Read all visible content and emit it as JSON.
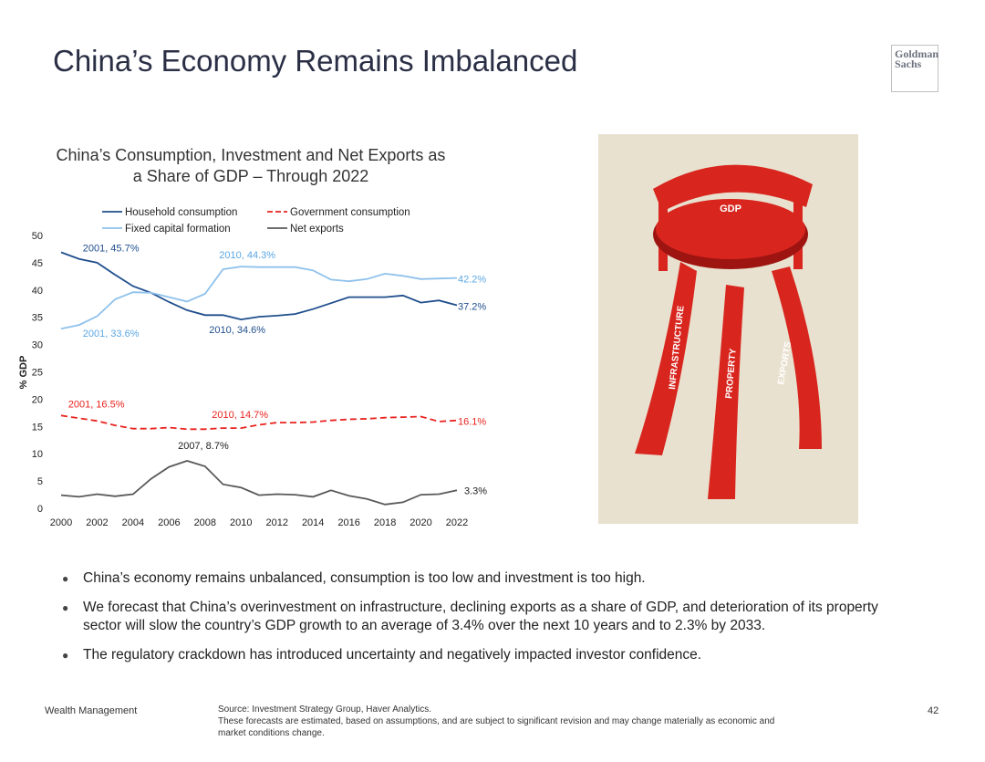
{
  "title": "China’s Economy Remains Imbalanced",
  "logo": {
    "line1": "Goldman",
    "line2": "Sachs"
  },
  "chart_title": {
    "line1": "China’s Consumption, Investment and Net Exports as",
    "line2": "a Share of GDP – Through 2022"
  },
  "chart_data": {
    "type": "line",
    "title": "China’s Consumption, Investment and Net Exports as a Share of GDP – Through 2022",
    "xlabel": "",
    "ylabel": "% GDP",
    "x": [
      2000,
      2001,
      2002,
      2003,
      2004,
      2005,
      2006,
      2007,
      2008,
      2009,
      2010,
      2011,
      2012,
      2013,
      2014,
      2015,
      2016,
      2017,
      2018,
      2019,
      2020,
      2021,
      2022
    ],
    "x_ticks": [
      "2000",
      "2002",
      "2004",
      "2006",
      "2008",
      "2010",
      "2012",
      "2014",
      "2016",
      "2018",
      "2020",
      "2022"
    ],
    "y_ticks": [
      "0",
      "5",
      "10",
      "15",
      "20",
      "25",
      "30",
      "35",
      "40",
      "45",
      "50"
    ],
    "ylim": [
      0,
      50
    ],
    "legend_position": "top",
    "series": [
      {
        "name": "Household consumption",
        "color": "#1f4e8c",
        "dash": "solid",
        "values": [
          46.9,
          45.7,
          45.0,
          42.8,
          40.7,
          39.5,
          37.8,
          36.3,
          35.4,
          35.4,
          34.6,
          35.1,
          35.3,
          35.6,
          36.5,
          37.6,
          38.7,
          38.7,
          38.7,
          39.0,
          37.7,
          38.1,
          37.2
        ]
      },
      {
        "name": "Government consumption",
        "color": "#e8231f",
        "dash": "dashed",
        "values": [
          17.0,
          16.5,
          16.0,
          15.2,
          14.6,
          14.6,
          14.8,
          14.5,
          14.5,
          14.7,
          14.7,
          15.3,
          15.7,
          15.7,
          15.8,
          16.1,
          16.3,
          16.4,
          16.6,
          16.7,
          16.8,
          15.9,
          16.1
        ]
      },
      {
        "name": "Fixed capital formation",
        "color": "#8ec1ec",
        "dash": "solid",
        "values": [
          32.9,
          33.6,
          35.2,
          38.3,
          39.6,
          39.5,
          38.7,
          37.9,
          39.3,
          43.8,
          44.3,
          44.2,
          44.2,
          44.2,
          43.6,
          41.9,
          41.6,
          42.0,
          43.0,
          42.6,
          42.0,
          42.1,
          42.2
        ]
      },
      {
        "name": "Net exports",
        "color": "#595959",
        "dash": "solid",
        "values": [
          2.4,
          2.1,
          2.6,
          2.2,
          2.6,
          5.4,
          7.6,
          8.7,
          7.7,
          4.4,
          3.8,
          2.4,
          2.6,
          2.5,
          2.1,
          3.3,
          2.3,
          1.7,
          0.7,
          1.1,
          2.5,
          2.6,
          3.3
        ]
      }
    ],
    "annotations": [
      {
        "text": "2001, 45.7%",
        "x": 2001,
        "y": 45.7,
        "color": "#1f4e8c"
      },
      {
        "text": "2010, 44.3%",
        "x": 2010,
        "y": 44.3,
        "color": "#5ca7e3"
      },
      {
        "text": "42.2%",
        "x": 2022,
        "y": 42.2,
        "color": "#5ca7e3"
      },
      {
        "text": "37.2%",
        "x": 2022,
        "y": 37.2,
        "color": "#1f4e8c"
      },
      {
        "text": "2001, 33.6%",
        "x": 2001,
        "y": 33.6,
        "color": "#5ca7e3"
      },
      {
        "text": "2010, 34.6%",
        "x": 2010,
        "y": 34.6,
        "color": "#1f4e8c"
      },
      {
        "text": "2001, 16.5%",
        "x": 2001,
        "y": 16.5,
        "color": "#e8231f"
      },
      {
        "text": "2010, 14.7%",
        "x": 2010,
        "y": 14.7,
        "color": "#e8231f"
      },
      {
        "text": "16.1%",
        "x": 2022,
        "y": 16.1,
        "color": "#e8231f"
      },
      {
        "text": "2007, 8.7%",
        "x": 2007,
        "y": 8.7,
        "color": "#222222"
      },
      {
        "text": "3.3%",
        "x": 2022,
        "y": 3.3,
        "color": "#222222"
      }
    ]
  },
  "illustration": {
    "seat_label": "GDP",
    "legs": [
      "INFRASTRUCTURE",
      "PROPERTY",
      "EXPORTS"
    ],
    "colors": {
      "background": "#e9e1cf",
      "chair": "#d8261f",
      "chair_dark": "#9e1411"
    }
  },
  "bullets": [
    "China’s economy remains unbalanced, consumption is too low and investment is too high.",
    "We forecast that China’s overinvestment on infrastructure, declining exports as a share of GDP, and deterioration of its property sector will slow the country’s GDP growth to an average of 3.4% over the next 10 years and to 2.3% by 2033.",
    "The regulatory crackdown has introduced uncertainty and negatively impacted investor confidence."
  ],
  "footer": {
    "left": "Wealth Management",
    "source_line1": "Source: Investment Strategy Group, Haver Analytics.",
    "source_line2": "These forecasts are estimated, based on assumptions, and are subject to significant revision and may change materially as economic and",
    "source_line3": "market conditions change.",
    "page_number": "42"
  }
}
